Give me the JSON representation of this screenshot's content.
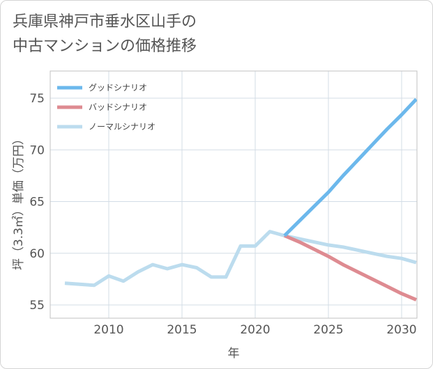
{
  "title_lines": [
    "兵庫県神戸市垂水区山手の",
    "中古マンションの価格推移"
  ],
  "chart_data": {
    "type": "line",
    "title": "兵庫県神戸市垂水区山手の中古マンションの価格推移",
    "xlabel": "年",
    "ylabel": "坪（3.3㎡）単価（万円）",
    "xlim": [
      2006,
      2031
    ],
    "ylim": [
      53.5,
      77.5
    ],
    "xticks": [
      2010,
      2015,
      2020,
      2025,
      2030
    ],
    "yticks": [
      55,
      60,
      65,
      70,
      75
    ],
    "grid": true,
    "legend_position": "top-left",
    "series": [
      {
        "name": "グッドシナリオ",
        "color": "#6cb8ec",
        "x": [
          2022,
          2023,
          2024,
          2025,
          2026,
          2027,
          2028,
          2029,
          2030,
          2031
        ],
        "y": [
          61.7,
          63.1,
          64.5,
          65.9,
          67.5,
          69.0,
          70.5,
          72.0,
          73.4,
          74.9
        ]
      },
      {
        "name": "バッドシナリオ",
        "color": "#de8b91",
        "x": [
          2022,
          2023,
          2024,
          2025,
          2026,
          2027,
          2028,
          2029,
          2030,
          2031
        ],
        "y": [
          61.7,
          61.1,
          60.4,
          59.7,
          58.9,
          58.2,
          57.5,
          56.8,
          56.1,
          55.5
        ]
      },
      {
        "name": "ノーマルシナリオ",
        "color": "#bcdcee",
        "x": [
          2007,
          2008,
          2009,
          2010,
          2011,
          2012,
          2013,
          2014,
          2015,
          2016,
          2017,
          2018,
          2019,
          2020,
          2021,
          2022,
          2023,
          2024,
          2025,
          2026,
          2027,
          2028,
          2029,
          2030,
          2031
        ],
        "y": [
          57.1,
          57.0,
          56.9,
          57.8,
          57.3,
          58.2,
          58.9,
          58.5,
          58.9,
          58.6,
          57.7,
          57.7,
          60.7,
          60.7,
          62.1,
          61.7,
          61.4,
          61.1,
          60.8,
          60.6,
          60.3,
          60.0,
          59.7,
          59.5,
          59.1
        ]
      }
    ]
  }
}
